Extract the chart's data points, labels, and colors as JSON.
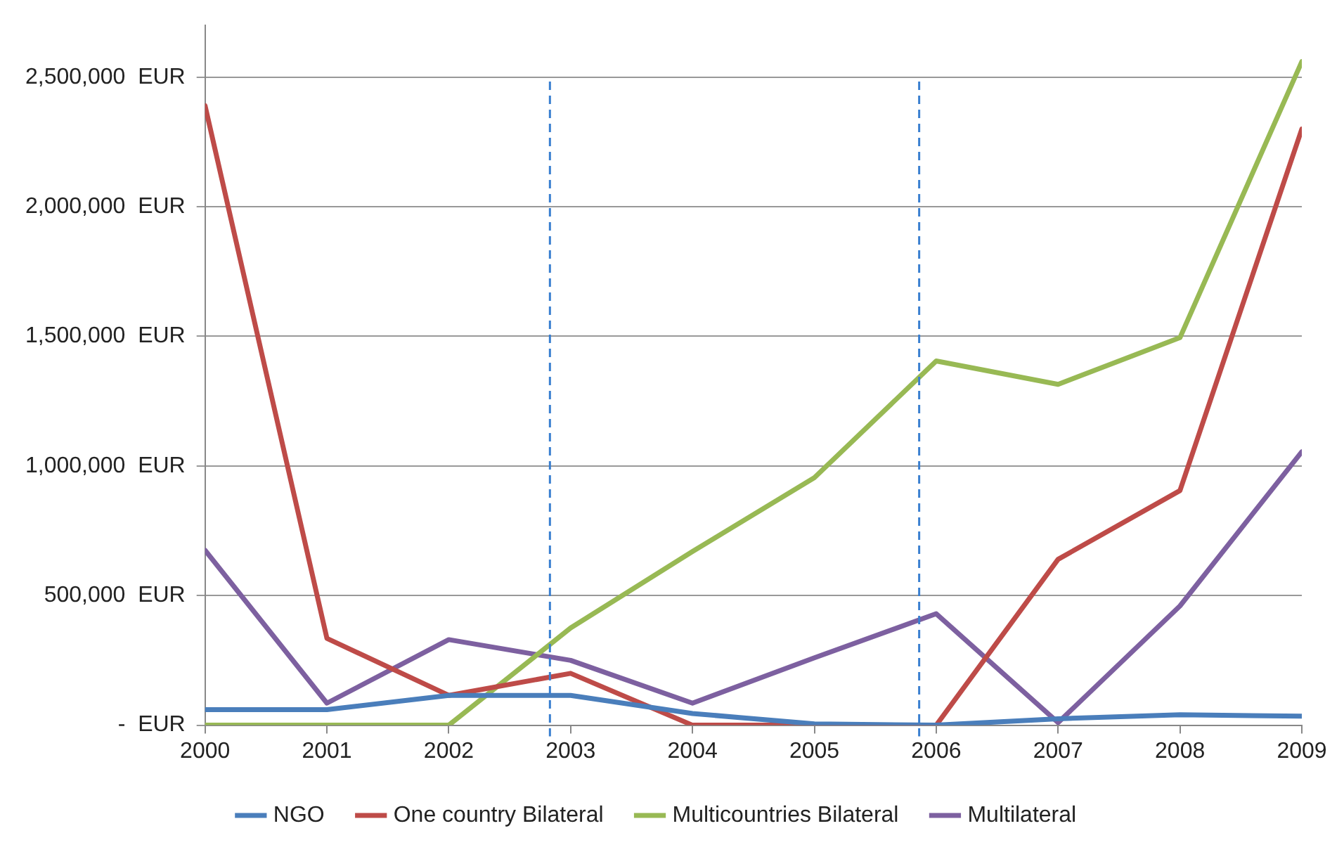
{
  "chart_data": {
    "type": "line",
    "x": [
      2000,
      2001,
      2002,
      2003,
      2004,
      2005,
      2006,
      2007,
      2008,
      2009
    ],
    "xlim": [
      2000,
      2009
    ],
    "xticks": [
      2000,
      2001,
      2002,
      2003,
      2004,
      2005,
      2006,
      2007,
      2008,
      2009
    ],
    "ylim": [
      0,
      2700000
    ],
    "yticks": [
      {
        "value": 0,
        "label": "-  EUR"
      },
      {
        "value": 500000,
        "label": "500,000  EUR"
      },
      {
        "value": 1000000,
        "label": "1,000,000  EUR"
      },
      {
        "value": 1500000,
        "label": "1,500,000  EUR"
      },
      {
        "value": 2000000,
        "label": "2,000,000  EUR"
      },
      {
        "value": 2500000,
        "label": "2,500,000  EUR"
      }
    ],
    "series": [
      {
        "name": "NGO",
        "color": "#4a7ebb",
        "values": [
          60000,
          60000,
          115000,
          115000,
          45000,
          5000,
          0,
          25000,
          40000,
          35000
        ]
      },
      {
        "name": "One country Bilateral",
        "color": "#be4b48",
        "values": [
          2390000,
          335000,
          115000,
          200000,
          0,
          0,
          0,
          640000,
          905000,
          2300000
        ]
      },
      {
        "name": "Multicountries Bilateral",
        "color": "#98b954",
        "values": [
          0,
          0,
          0,
          375000,
          670000,
          955000,
          1405000,
          1315000,
          1495000,
          2560000
        ]
      },
      {
        "name": "Multilateral",
        "color": "#7d60a0",
        "values": [
          675000,
          85000,
          330000,
          250000,
          85000,
          260000,
          430000,
          10000,
          460000,
          1055000
        ]
      }
    ],
    "ref_lines": [
      {
        "axis": "x",
        "value": 2002.83,
        "color": "#3a7fd0",
        "line_style": "dashed"
      },
      {
        "axis": "x",
        "value": 2005.86,
        "color": "#3a7fd0",
        "line_style": "dashed"
      }
    ],
    "grid": "y",
    "legend": "bottom",
    "marker": "none",
    "line_style": "solid"
  }
}
